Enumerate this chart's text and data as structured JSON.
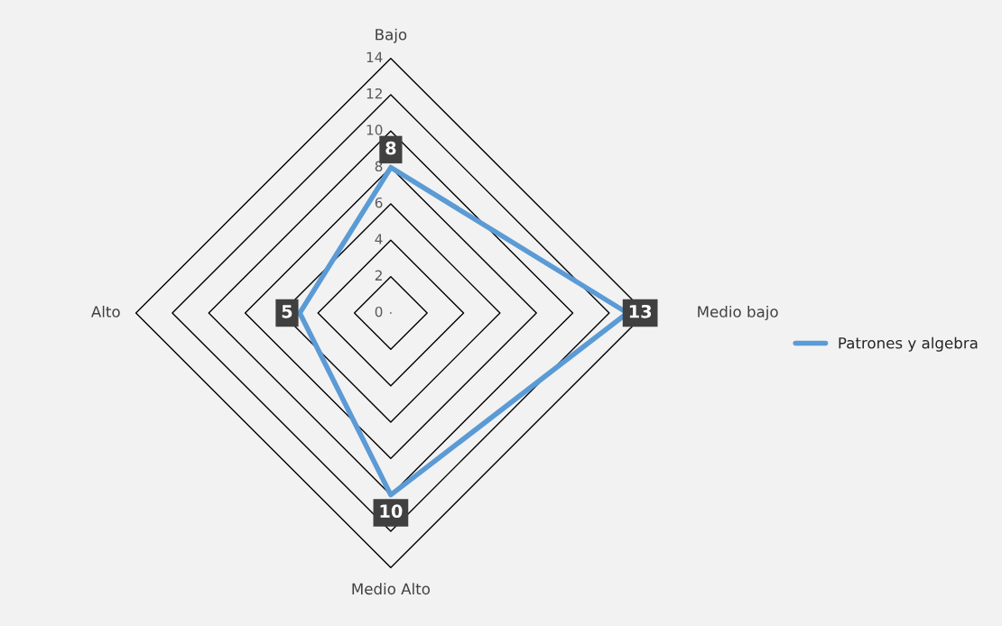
{
  "chart_data": {
    "type": "radar",
    "categories": [
      "Bajo",
      "Medio bajo",
      "Medio Alto",
      "Alto"
    ],
    "series": [
      {
        "name": "Patrones y algebra",
        "color": "#5b9bd5",
        "values": [
          8,
          13,
          10,
          5
        ]
      }
    ],
    "ylim": [
      0,
      14
    ],
    "yticks": [
      0,
      2,
      4,
      6,
      8,
      10,
      12,
      14
    ],
    "grid": true,
    "legend": "right",
    "data_labels": true,
    "marker": "none",
    "line_style": "solid"
  }
}
